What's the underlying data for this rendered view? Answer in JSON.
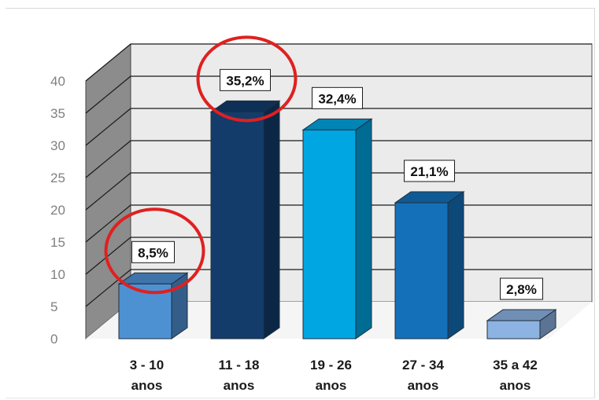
{
  "chart_data": {
    "type": "bar",
    "style": "3d-column",
    "categories": [
      "3 - 10 anos",
      "11 - 18 anos",
      "19 - 26 anos",
      "27 - 34 anos",
      "35 a 42 anos"
    ],
    "category_lines": [
      [
        "3 - 10",
        "anos"
      ],
      [
        "11 - 18",
        "anos"
      ],
      [
        "19 - 26",
        "anos"
      ],
      [
        "27 - 34",
        "anos"
      ],
      [
        "35 a 42",
        "anos"
      ]
    ],
    "values": [
      8.5,
      35.2,
      32.4,
      21.1,
      2.8
    ],
    "data_labels": [
      "8,5%",
      "35,2%",
      "32,4%",
      "21,1%",
      "2,8%"
    ],
    "y_ticks": [
      "0",
      "5",
      "10",
      "15",
      "20",
      "25",
      "30",
      "35",
      "40"
    ],
    "ylim": [
      0,
      40
    ],
    "grid": true,
    "legend": "none",
    "title": "",
    "xlabel": "",
    "ylabel": "",
    "highlighted": [
      "3 - 10 anos",
      "11 - 18 anos"
    ],
    "highlight_color": "#e02020",
    "bar_colors": [
      "#4e91d3",
      "#133c6b",
      "#00a6e2",
      "#1470b8",
      "#8db3e2"
    ],
    "wall_color": "#ebebeb",
    "side_wall_color": "#8c8c8c"
  }
}
